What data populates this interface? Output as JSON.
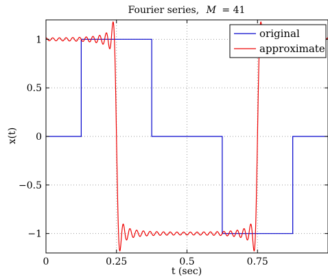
{
  "chart_data": {
    "type": "line",
    "title_text": "Fourier series,",
    "title_param": "M",
    "title_value": "= 41",
    "xlabel": "t (sec)",
    "ylabel": "x(t)",
    "xlim": [
      0,
      1
    ],
    "ylim": [
      -1.2,
      1.2
    ],
    "xticks": [
      0,
      0.25,
      0.5,
      0.75
    ],
    "xtick_labels": [
      "0",
      "0.25",
      "0.5",
      "0.75"
    ],
    "yticks": [
      1,
      0.5,
      0,
      -0.5,
      -1
    ],
    "ytick_labels": [
      "1",
      "0.5",
      "0",
      "−0.5",
      "−1"
    ],
    "grid": true,
    "legend_position": "top-right",
    "harmonics": 41,
    "series": [
      {
        "name": "original",
        "color": "#0000cc",
        "x": [
          0,
          0.125,
          0.125,
          0.375,
          0.375,
          0.625,
          0.625,
          0.875,
          0.875,
          1
        ],
        "y": [
          0,
          0,
          1,
          1,
          0,
          0,
          -1,
          -1,
          0,
          0
        ]
      },
      {
        "name": "approximate",
        "color": "#ee0000"
      }
    ]
  }
}
